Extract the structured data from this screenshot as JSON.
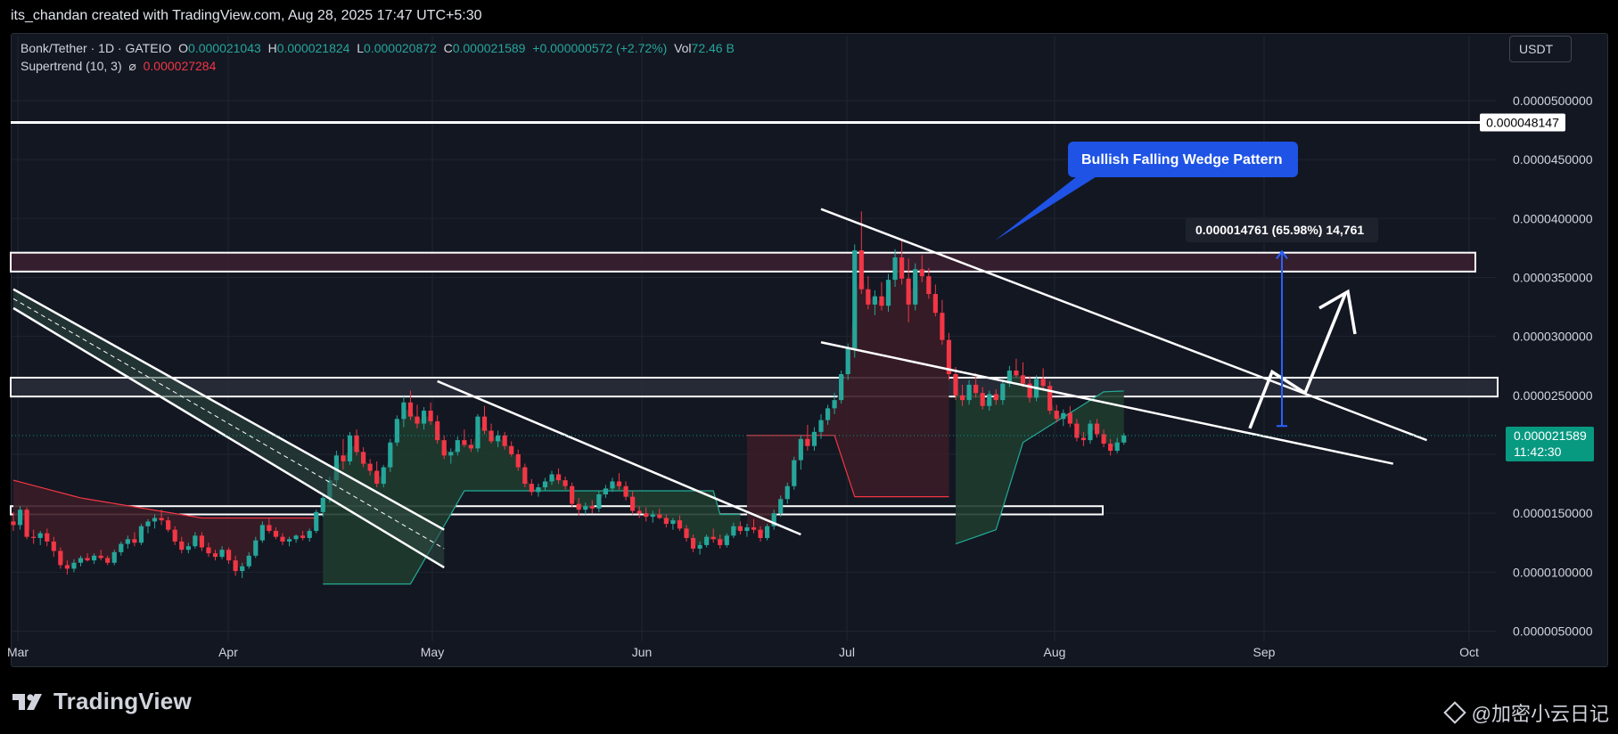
{
  "header": {
    "attribution": "its_chandan created with TradingView.com, Aug 28, 2025 17:47 UTC+5:30"
  },
  "legend": {
    "symbol": "Bonk/Tether · 1D · GATEIO",
    "o_label": "O",
    "o_value": "0.000021043",
    "h_label": "H",
    "h_value": "0.000021824",
    "l_label": "L",
    "l_value": "0.000020872",
    "c_label": "C",
    "c_value": "0.000021589",
    "change": "+0.000000572 (+2.72%)",
    "vol_label": "Vol",
    "vol_value": "72.46 B",
    "indicator_name": "Supertrend (10, 3)",
    "indicator_symbol": "⌀",
    "indicator_value": "0.000027284"
  },
  "currency_button": "USDT",
  "branding": {
    "logo_text": "TradingView",
    "watermark": "@加密小云日记"
  },
  "colors": {
    "background": "#131722",
    "grid": "#1f2430",
    "up": "#26a69a",
    "down": "#f23645",
    "text": "#d1d4dc",
    "supertrend_up_fill": "#1f3b2f",
    "supertrend_down_fill": "#3a1c26",
    "callout": "#1e53e5",
    "measure": "#2962ff",
    "last_price": "#089981"
  },
  "chart_data": {
    "type": "candlestick",
    "x_axis_labels": [
      "Mar",
      "Apr",
      "May",
      "Jun",
      "Jul",
      "Aug",
      "Sep",
      "Oct"
    ],
    "y_axis_labels": [
      "0.0000050000",
      "0.0000100000",
      "0.0000150000",
      "0.0000200000",
      "0.0000250000",
      "0.0000300000",
      "0.0000350000",
      "0.0000400000",
      "0.0000450000",
      "0.0000500000"
    ],
    "y_ticks": [
      5,
      10,
      15,
      20,
      25,
      30,
      35,
      40,
      45,
      50
    ],
    "ylim": [
      3.0,
      54.0
    ],
    "grid": true,
    "price_unit": "1e-6 USDT",
    "ohlc": [
      [
        14.3,
        15.1,
        13.5,
        14.0
      ],
      [
        14.0,
        15.6,
        13.6,
        15.3
      ],
      [
        15.3,
        15.5,
        12.8,
        13.0
      ],
      [
        13.0,
        13.6,
        12.4,
        12.9
      ],
      [
        12.9,
        13.5,
        12.3,
        13.3
      ],
      [
        13.3,
        13.7,
        12.2,
        12.6
      ],
      [
        12.6,
        13.0,
        11.3,
        11.8
      ],
      [
        11.8,
        12.1,
        10.3,
        10.6
      ],
      [
        10.6,
        11.0,
        9.8,
        10.3
      ],
      [
        10.3,
        11.1,
        10.0,
        10.8
      ],
      [
        10.8,
        11.4,
        10.5,
        11.2
      ],
      [
        11.2,
        11.6,
        10.9,
        11.0
      ],
      [
        11.0,
        11.6,
        10.7,
        11.4
      ],
      [
        11.4,
        11.9,
        11.0,
        11.2
      ],
      [
        11.2,
        11.4,
        10.6,
        10.8
      ],
      [
        10.8,
        11.9,
        10.6,
        11.7
      ],
      [
        11.7,
        12.6,
        11.4,
        12.4
      ],
      [
        12.4,
        13.1,
        12.0,
        12.8
      ],
      [
        12.8,
        13.4,
        12.2,
        12.5
      ],
      [
        12.5,
        14.1,
        12.3,
        13.9
      ],
      [
        13.9,
        14.5,
        13.3,
        14.3
      ],
      [
        14.3,
        14.9,
        13.7,
        14.6
      ],
      [
        14.6,
        15.3,
        14.0,
        14.4
      ],
      [
        14.4,
        14.7,
        13.4,
        13.6
      ],
      [
        13.6,
        13.9,
        12.3,
        12.6
      ],
      [
        12.6,
        13.0,
        11.6,
        11.9
      ],
      [
        11.9,
        12.5,
        11.6,
        12.2
      ],
      [
        12.2,
        13.4,
        12.0,
        13.1
      ],
      [
        13.1,
        13.4,
        11.8,
        12.1
      ],
      [
        12.1,
        12.5,
        11.3,
        11.6
      ],
      [
        11.6,
        11.9,
        11.0,
        11.3
      ],
      [
        11.3,
        12.2,
        11.1,
        11.9
      ],
      [
        11.9,
        12.1,
        10.7,
        11.0
      ],
      [
        11.0,
        11.4,
        9.7,
        10.1
      ],
      [
        10.1,
        10.8,
        9.5,
        10.5
      ],
      [
        10.5,
        11.7,
        10.3,
        11.4
      ],
      [
        11.4,
        13.0,
        11.2,
        12.7
      ],
      [
        12.7,
        14.3,
        12.5,
        14.0
      ],
      [
        14.0,
        14.6,
        13.3,
        13.5
      ],
      [
        13.5,
        13.8,
        12.8,
        13.0
      ],
      [
        13.0,
        13.3,
        12.3,
        12.6
      ],
      [
        12.6,
        13.0,
        12.2,
        12.8
      ],
      [
        12.8,
        13.2,
        12.5,
        13.1
      ],
      [
        13.1,
        13.5,
        12.7,
        12.9
      ],
      [
        12.9,
        13.7,
        12.6,
        13.5
      ],
      [
        13.5,
        15.3,
        13.3,
        15.1
      ],
      [
        15.1,
        16.6,
        14.7,
        16.3
      ],
      [
        16.3,
        18.1,
        15.9,
        17.8
      ],
      [
        17.8,
        20.3,
        17.3,
        19.9
      ],
      [
        19.9,
        21.3,
        18.7,
        19.4
      ],
      [
        19.4,
        21.9,
        19.1,
        21.6
      ],
      [
        21.6,
        22.1,
        19.9,
        20.2
      ],
      [
        20.2,
        20.6,
        18.9,
        19.2
      ],
      [
        19.2,
        19.6,
        18.2,
        18.6
      ],
      [
        18.6,
        19.4,
        17.2,
        17.5
      ],
      [
        17.5,
        19.1,
        17.2,
        18.9
      ],
      [
        18.9,
        21.3,
        18.5,
        21.0
      ],
      [
        21.0,
        23.3,
        20.7,
        23.0
      ],
      [
        23.0,
        24.9,
        22.3,
        24.4
      ],
      [
        24.4,
        25.4,
        22.9,
        23.2
      ],
      [
        23.2,
        24.2,
        22.2,
        22.6
      ],
      [
        22.6,
        24.0,
        22.1,
        23.7
      ],
      [
        23.7,
        24.4,
        22.5,
        22.8
      ],
      [
        22.8,
        23.3,
        20.9,
        21.2
      ],
      [
        21.2,
        21.6,
        19.6,
        19.9
      ],
      [
        19.9,
        20.5,
        19.2,
        20.2
      ],
      [
        20.2,
        21.5,
        19.9,
        21.2
      ],
      [
        21.2,
        22.1,
        20.6,
        20.8
      ],
      [
        20.8,
        21.3,
        20.2,
        20.5
      ],
      [
        20.5,
        23.4,
        20.2,
        23.2
      ],
      [
        23.2,
        24.1,
        21.7,
        22.0
      ],
      [
        22.0,
        22.6,
        20.9,
        21.1
      ],
      [
        21.1,
        22.0,
        20.6,
        21.6
      ],
      [
        21.6,
        21.9,
        20.4,
        20.7
      ],
      [
        20.7,
        21.1,
        19.8,
        20.0
      ],
      [
        20.0,
        20.4,
        18.6,
        18.9
      ],
      [
        18.9,
        19.2,
        17.2,
        17.5
      ],
      [
        17.5,
        17.9,
        16.5,
        16.8
      ],
      [
        16.8,
        17.5,
        16.4,
        17.2
      ],
      [
        17.2,
        18.0,
        16.9,
        17.7
      ],
      [
        17.7,
        18.6,
        17.4,
        18.3
      ],
      [
        18.3,
        18.8,
        17.5,
        17.8
      ],
      [
        17.8,
        18.1,
        17.0,
        17.3
      ],
      [
        17.3,
        17.6,
        15.5,
        15.8
      ],
      [
        15.8,
        16.3,
        14.8,
        15.3
      ],
      [
        15.3,
        15.9,
        14.9,
        15.6
      ],
      [
        15.6,
        16.1,
        15.0,
        15.4
      ],
      [
        15.4,
        16.9,
        15.1,
        16.6
      ],
      [
        16.6,
        17.4,
        16.3,
        17.1
      ],
      [
        17.1,
        18.0,
        16.8,
        17.7
      ],
      [
        17.7,
        18.4,
        17.0,
        17.3
      ],
      [
        17.3,
        17.7,
        16.1,
        16.4
      ],
      [
        16.4,
        16.9,
        14.9,
        15.2
      ],
      [
        15.2,
        15.6,
        14.6,
        15.0
      ],
      [
        15.0,
        15.5,
        14.3,
        14.7
      ],
      [
        14.7,
        15.2,
        14.2,
        14.9
      ],
      [
        14.9,
        15.4,
        14.5,
        14.6
      ],
      [
        14.6,
        14.9,
        13.8,
        14.1
      ],
      [
        14.1,
        14.6,
        13.6,
        14.4
      ],
      [
        14.4,
        14.8,
        13.5,
        13.7
      ],
      [
        13.7,
        14.0,
        12.6,
        12.9
      ],
      [
        12.9,
        13.2,
        11.7,
        12.0
      ],
      [
        12.0,
        12.6,
        11.5,
        12.3
      ],
      [
        12.3,
        13.2,
        12.1,
        13.0
      ],
      [
        13.0,
        13.7,
        12.5,
        12.8
      ],
      [
        12.8,
        13.2,
        12.0,
        12.3
      ],
      [
        12.3,
        13.3,
        12.1,
        13.1
      ],
      [
        13.1,
        14.2,
        12.9,
        13.9
      ],
      [
        13.9,
        14.3,
        13.2,
        13.5
      ],
      [
        13.5,
        14.1,
        13.0,
        13.8
      ],
      [
        13.8,
        14.5,
        13.3,
        13.6
      ],
      [
        13.6,
        13.9,
        12.6,
        12.9
      ],
      [
        12.9,
        14.1,
        12.7,
        13.9
      ],
      [
        13.9,
        15.3,
        13.6,
        15.0
      ],
      [
        15.0,
        16.5,
        14.7,
        16.2
      ],
      [
        16.2,
        17.6,
        15.8,
        17.3
      ],
      [
        17.3,
        19.8,
        17.0,
        19.5
      ],
      [
        19.5,
        21.6,
        18.7,
        21.3
      ],
      [
        21.3,
        22.5,
        20.3,
        20.7
      ],
      [
        20.7,
        22.3,
        20.3,
        21.9
      ],
      [
        21.9,
        23.4,
        21.3,
        22.9
      ],
      [
        22.9,
        24.2,
        22.5,
        23.9
      ],
      [
        23.9,
        25.2,
        23.4,
        24.6
      ],
      [
        24.6,
        27.1,
        24.3,
        26.8
      ],
      [
        26.8,
        29.4,
        26.3,
        29.0
      ],
      [
        29.0,
        37.8,
        28.2,
        37.3
      ],
      [
        37.3,
        40.6,
        33.6,
        34.0
      ],
      [
        34.0,
        35.1,
        32.3,
        32.7
      ],
      [
        32.7,
        33.9,
        31.8,
        33.4
      ],
      [
        33.4,
        34.6,
        32.2,
        32.6
      ],
      [
        32.6,
        35.3,
        32.1,
        34.8
      ],
      [
        34.8,
        37.4,
        34.2,
        36.7
      ],
      [
        36.7,
        38.1,
        34.4,
        34.9
      ],
      [
        34.9,
        36.6,
        31.2,
        32.7
      ],
      [
        32.7,
        36.2,
        32.2,
        35.7
      ],
      [
        35.7,
        36.9,
        34.6,
        35.1
      ],
      [
        35.1,
        35.8,
        33.2,
        33.6
      ],
      [
        33.6,
        34.4,
        31.7,
        32.0
      ],
      [
        32.0,
        33.1,
        29.3,
        29.7
      ],
      [
        29.7,
        30.3,
        26.3,
        26.8
      ],
      [
        26.8,
        27.4,
        24.6,
        25.0
      ],
      [
        25.0,
        25.9,
        24.1,
        24.6
      ],
      [
        24.6,
        26.3,
        24.2,
        25.9
      ],
      [
        25.9,
        26.9,
        24.8,
        25.2
      ],
      [
        25.2,
        25.7,
        23.8,
        24.1
      ],
      [
        24.1,
        25.4,
        23.7,
        25.1
      ],
      [
        25.1,
        25.5,
        24.2,
        24.6
      ],
      [
        24.6,
        26.3,
        24.2,
        26.0
      ],
      [
        26.0,
        27.5,
        25.7,
        27.1
      ],
      [
        27.1,
        28.1,
        26.5,
        26.7
      ],
      [
        26.7,
        27.8,
        25.7,
        26.0
      ],
      [
        26.0,
        26.6,
        24.4,
        24.8
      ],
      [
        24.8,
        26.7,
        24.5,
        26.4
      ],
      [
        26.4,
        27.3,
        25.5,
        25.8
      ],
      [
        25.8,
        26.2,
        23.4,
        23.7
      ],
      [
        23.7,
        24.2,
        22.7,
        23.0
      ],
      [
        23.0,
        23.8,
        22.4,
        23.5
      ],
      [
        23.5,
        24.1,
        22.3,
        22.6
      ],
      [
        22.6,
        23.0,
        21.1,
        21.4
      ],
      [
        21.4,
        21.9,
        20.7,
        21.2
      ],
      [
        21.2,
        22.9,
        20.9,
        22.6
      ],
      [
        22.6,
        23.0,
        21.4,
        21.7
      ],
      [
        21.7,
        22.1,
        20.6,
        20.9
      ],
      [
        20.9,
        21.3,
        19.9,
        20.3
      ],
      [
        20.3,
        21.4,
        20.1,
        21.0
      ],
      [
        21.0,
        21.8,
        20.8,
        21.6
      ]
    ],
    "supertrend": [
      [
        0,
        "d",
        17.8
      ],
      [
        10,
        "d",
        16.3
      ],
      [
        28,
        "d",
        14.6
      ],
      [
        40,
        "d",
        14.6
      ],
      [
        45,
        "u",
        9.0
      ],
      [
        59,
        "u",
        9.0
      ],
      [
        67,
        "u",
        16.9
      ],
      [
        104,
        "u",
        16.9
      ],
      [
        105,
        "u",
        14.9
      ],
      [
        107,
        "u",
        14.9
      ],
      [
        108,
        "d",
        21.6
      ],
      [
        122,
        "d",
        21.6
      ],
      [
        125,
        "d",
        16.4
      ],
      [
        138,
        "d",
        16.4
      ],
      [
        139,
        "u",
        12.2
      ],
      [
        146,
        "u",
        13.6
      ],
      [
        150,
        "u",
        21.0
      ],
      [
        162,
        "u",
        25.3
      ],
      [
        175,
        "u",
        25.6
      ],
      [
        176,
        "d",
        37.1
      ],
      [
        189,
        "d",
        32.4
      ],
      [
        200,
        "d",
        32.0
      ],
      [
        201,
        "d",
        27.3
      ],
      [
        205,
        "d",
        27.1
      ],
      [
        207,
        "d",
        27.0
      ]
    ],
    "zones": [
      {
        "from": 35.5,
        "to": 37.1,
        "fill": "#3c2131"
      },
      {
        "from": 24.9,
        "to": 26.5,
        "fill": "#2a2e39"
      },
      {
        "from": 14.9,
        "to": 15.6,
        "fill": "#131722"
      }
    ],
    "levels": [
      {
        "price": 48.147,
        "label": "0.000048147"
      }
    ],
    "last_price": {
      "price": 21.589,
      "label": "0.000021589",
      "countdown": "11:42:30"
    },
    "annotations": {
      "callout_text": "Bullish Falling Wedge Pattern",
      "measure_text": "0.000014761 (65.98%) 14,761",
      "measure_from": 22.4,
      "measure_to": 37.2
    }
  }
}
